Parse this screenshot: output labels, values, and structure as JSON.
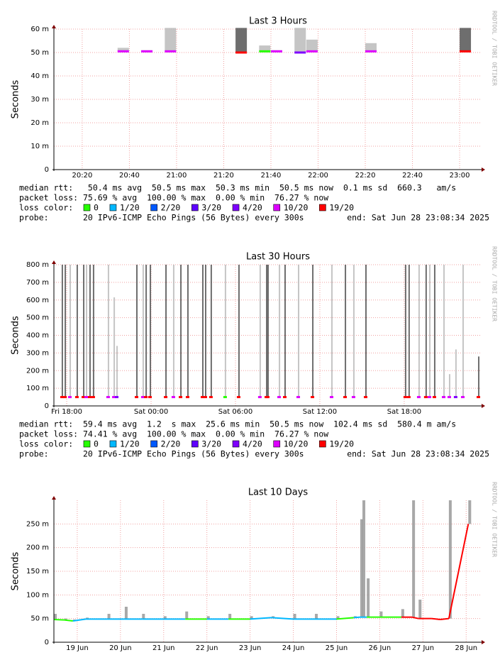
{
  "chart_data": [
    {
      "type": "smokeping",
      "title": "Last 3 Hours",
      "ylabel": "Seconds",
      "side_text": "RRDTOOL / TOBI OETIKER",
      "xlim": [
        1208,
        1389
      ],
      "xticks": [
        {
          "value": 1220,
          "label": "20:20"
        },
        {
          "value": 1240,
          "label": "20:40"
        },
        {
          "value": 1260,
          "label": "21:00"
        },
        {
          "value": 1280,
          "label": "21:20"
        },
        {
          "value": 1300,
          "label": "21:40"
        },
        {
          "value": 1320,
          "label": "22:00"
        },
        {
          "value": 1340,
          "label": "22:20"
        },
        {
          "value": 1360,
          "label": "22:40"
        },
        {
          "value": 1380,
          "label": "23:00"
        }
      ],
      "ylim": [
        0,
        0.06
      ],
      "yticks": [
        0,
        {
          "value": 0.01,
          "label": "10 m"
        },
        {
          "value": 0.02,
          "label": "20 m"
        },
        {
          "value": 0.03,
          "label": "30 m"
        },
        {
          "value": 0.04,
          "label": "40 m"
        },
        {
          "value": 0.05,
          "label": "50 m"
        },
        {
          "value": 0.06,
          "label": "60 m"
        }
      ],
      "grid": true,
      "points": [
        {
          "x": 1235,
          "median": 0.0505,
          "max": 0.052,
          "color": "#dd00ff"
        },
        {
          "x": 1245,
          "median": 0.0505,
          "max": 0.051,
          "color": "#dd00ff"
        },
        {
          "x": 1255,
          "median": 0.0505,
          "max": 0.0605,
          "color": "#dd00ff"
        },
        {
          "x": 1285,
          "median": 0.05,
          "max": 0.0605,
          "color": "#ff0000"
        },
        {
          "x": 1295,
          "median": 0.0505,
          "max": 0.053,
          "color": "#26ff00"
        },
        {
          "x": 1300,
          "median": 0.0505,
          "max": 0.051,
          "color": "#dd00ff"
        },
        {
          "x": 1310,
          "median": 0.05,
          "max": 0.0605,
          "color": "#7e00ff"
        },
        {
          "x": 1315,
          "median": 0.0505,
          "max": 0.0555,
          "color": "#dd00ff"
        },
        {
          "x": 1340,
          "median": 0.0505,
          "max": 0.054,
          "color": "#dd00ff"
        },
        {
          "x": 1380,
          "median": 0.0505,
          "max": 0.0605,
          "color": "#ff0000"
        }
      ],
      "stats": [
        "median rtt:   50.4 ms avg  50.5 ms max  50.3 ms min  50.5 ms now  0.1 ms sd  660.3   am/s",
        "packet loss: 75.69 % avg  100.00 % max  0.00 % min  76.27 % now"
      ],
      "loss_legend_title": "loss color:",
      "loss_legend": [
        {
          "label": "0",
          "color": "#26ff00"
        },
        {
          "label": "1/20",
          "color": "#00b8ff"
        },
        {
          "label": "2/20",
          "color": "#0059ff"
        },
        {
          "label": "3/20",
          "color": "#5e00ff"
        },
        {
          "label": "4/20",
          "color": "#7e00ff"
        },
        {
          "label": "10/20",
          "color": "#dd00ff"
        },
        {
          "label": "19/20",
          "color": "#ff0000"
        }
      ],
      "probe": "probe:       20 IPv6-ICMP Echo Pings (56 Bytes) every 300s",
      "end": "end: Sat Jun 28 23:08:34 2025"
    },
    {
      "type": "smokeping",
      "title": "Last 30 Hours",
      "ylabel": "Seconds",
      "side_text": "RRDTOOL / TOBI OETIKER",
      "xlim": [
        17.09,
        47.45
      ],
      "xticks": [
        {
          "value": 18,
          "label": "Fri 18:00"
        },
        {
          "value": 24,
          "label": "Sat 00:00"
        },
        {
          "value": 30,
          "label": "Sat 06:00"
        },
        {
          "value": 36,
          "label": "Sat 12:00"
        },
        {
          "value": 42,
          "label": "Sat 18:00"
        }
      ],
      "ylim": [
        0,
        0.8
      ],
      "yticks": [
        0,
        {
          "value": 0.1,
          "label": "100 m"
        },
        {
          "value": 0.2,
          "label": "200 m"
        },
        {
          "value": 0.3,
          "label": "300 m"
        },
        {
          "value": 0.4,
          "label": "400 m"
        },
        {
          "value": 0.5,
          "label": "500 m"
        },
        {
          "value": 0.6,
          "label": "600 m"
        },
        {
          "value": 0.7,
          "label": "700 m"
        },
        {
          "value": 0.8,
          "label": "800 m"
        }
      ],
      "grid": true,
      "points": [
        {
          "x": 17.64,
          "median": 0.05,
          "max": 0.8,
          "color": "#ff0000"
        },
        {
          "x": 17.85,
          "median": 0.05,
          "max": 0.8,
          "color": "#ff0000"
        },
        {
          "x": 18.2,
          "median": 0.05,
          "max": 0.8,
          "color": "#dd00ff"
        },
        {
          "x": 18.7,
          "median": 0.05,
          "max": 0.8,
          "color": "#ff0000"
        },
        {
          "x": 19.16,
          "median": 0.05,
          "max": 0.8,
          "color": "#ff0000"
        },
        {
          "x": 19.36,
          "median": 0.05,
          "max": 0.8,
          "color": "#dd00ff"
        },
        {
          "x": 19.61,
          "median": 0.05,
          "max": 0.8,
          "color": "#ff0000"
        },
        {
          "x": 19.86,
          "median": 0.05,
          "max": 0.8,
          "color": "#ff0000"
        },
        {
          "x": 20.92,
          "median": 0.05,
          "max": 0.8,
          "color": "#dd00ff"
        },
        {
          "x": 21.33,
          "median": 0.05,
          "max": 0.615,
          "color": "#dd00ff"
        },
        {
          "x": 21.53,
          "median": 0.05,
          "max": 0.34,
          "color": "#7e00ff"
        },
        {
          "x": 22.94,
          "median": 0.05,
          "max": 0.8,
          "color": "#ff0000"
        },
        {
          "x": 23.39,
          "median": 0.05,
          "max": 0.8,
          "color": "#dd00ff"
        },
        {
          "x": 23.6,
          "median": 0.05,
          "max": 0.8,
          "color": "#ff0000"
        },
        {
          "x": 23.9,
          "median": 0.05,
          "max": 0.8,
          "color": "#ff0000"
        },
        {
          "x": 25.01,
          "median": 0.05,
          "max": 0.8,
          "color": "#ff0000"
        },
        {
          "x": 25.56,
          "median": 0.05,
          "max": 0.8,
          "color": "#dd00ff"
        },
        {
          "x": 26.07,
          "median": 0.05,
          "max": 0.8,
          "color": "#ff0000"
        },
        {
          "x": 26.57,
          "median": 0.05,
          "max": 0.8,
          "color": "#ff0000"
        },
        {
          "x": 27.63,
          "median": 0.05,
          "max": 0.8,
          "color": "#ff0000"
        },
        {
          "x": 27.83,
          "median": 0.05,
          "max": 0.8,
          "color": "#ff0000"
        },
        {
          "x": 28.23,
          "median": 0.05,
          "max": 0.8,
          "color": "#ff0000"
        },
        {
          "x": 29.24,
          "median": 0.05,
          "max": 0.8,
          "color": "#26ff00"
        },
        {
          "x": 30.2,
          "median": 0.05,
          "max": 0.8,
          "color": "#ff0000"
        },
        {
          "x": 31.71,
          "median": 0.05,
          "max": 0.8,
          "color": "#dd00ff"
        },
        {
          "x": 32.17,
          "median": 0.05,
          "max": 0.8,
          "color": "#ff0000"
        },
        {
          "x": 32.27,
          "median": 0.05,
          "max": 0.8,
          "color": "#ff0000"
        },
        {
          "x": 33.08,
          "median": 0.05,
          "max": 0.8,
          "color": "#dd00ff"
        },
        {
          "x": 33.48,
          "median": 0.05,
          "max": 0.8,
          "color": "#ff0000"
        },
        {
          "x": 34.44,
          "median": 0.05,
          "max": 0.8,
          "color": "#dd00ff"
        },
        {
          "x": 35.45,
          "median": 0.05,
          "max": 0.8,
          "color": "#ff0000"
        },
        {
          "x": 36.81,
          "median": 0.05,
          "max": 0.8,
          "color": "#dd00ff"
        },
        {
          "x": 37.77,
          "median": 0.05,
          "max": 0.8,
          "color": "#ff0000"
        },
        {
          "x": 38.37,
          "median": 0.05,
          "max": 0.8,
          "color": "#dd00ff"
        },
        {
          "x": 39.23,
          "median": 0.05,
          "max": 0.8,
          "color": "#ff0000"
        },
        {
          "x": 42.05,
          "median": 0.05,
          "max": 0.8,
          "color": "#ff0000"
        },
        {
          "x": 42.3,
          "median": 0.05,
          "max": 0.8,
          "color": "#ff0000"
        },
        {
          "x": 43.01,
          "median": 0.05,
          "max": 0.8,
          "color": "#dd00ff"
        },
        {
          "x": 43.51,
          "median": 0.05,
          "max": 0.8,
          "color": "#ff0000"
        },
        {
          "x": 43.77,
          "median": 0.05,
          "max": 0.8,
          "color": "#dd00ff"
        },
        {
          "x": 44.12,
          "median": 0.05,
          "max": 0.8,
          "color": "#ff0000"
        },
        {
          "x": 44.78,
          "median": 0.05,
          "max": 0.8,
          "color": "#dd00ff"
        },
        {
          "x": 45.18,
          "median": 0.05,
          "max": 0.18,
          "color": "#dd00ff"
        },
        {
          "x": 45.63,
          "median": 0.05,
          "max": 0.32,
          "color": "#7e00ff"
        },
        {
          "x": 46.14,
          "median": 0.05,
          "max": 0.8,
          "color": "#dd00ff"
        },
        {
          "x": 47.25,
          "median": 0.05,
          "max": 0.28,
          "color": "#ff0000"
        }
      ],
      "stats": [
        "median rtt:  59.4 ms avg  1.2  s max  25.6 ms min  50.5 ms now  102.4 ms sd  580.4 m am/s",
        "packet loss: 74.41 % avg  100.00 % max  0.00 % min  76.27 % now"
      ],
      "loss_legend_title": "loss color:",
      "loss_legend": [
        {
          "label": "0",
          "color": "#26ff00"
        },
        {
          "label": "1/20",
          "color": "#00b8ff"
        },
        {
          "label": "2/20",
          "color": "#0059ff"
        },
        {
          "label": "3/20",
          "color": "#5e00ff"
        },
        {
          "label": "4/20",
          "color": "#7e00ff"
        },
        {
          "label": "10/20",
          "color": "#dd00ff"
        },
        {
          "label": "19/20",
          "color": "#ff0000"
        }
      ],
      "probe": "probe:       20 IPv6-ICMP Echo Pings (56 Bytes) every 300s",
      "end": "end: Sat Jun 28 23:08:34 2025"
    },
    {
      "type": "smokeping-line",
      "title": "Last 10 Days",
      "ylabel": "Seconds",
      "side_text": "RRDTOOL / TOBI OETIKER",
      "xlim": [
        18.96,
        28.84
      ],
      "xticks": [
        {
          "value": 19.5,
          "label": "19 Jun"
        },
        {
          "value": 20.5,
          "label": "20 Jun"
        },
        {
          "value": 21.5,
          "label": "21 Jun"
        },
        {
          "value": 22.5,
          "label": "22 Jun"
        },
        {
          "value": 23.5,
          "label": "23 Jun"
        },
        {
          "value": 24.5,
          "label": "24 Jun"
        },
        {
          "value": 25.5,
          "label": "25 Jun"
        },
        {
          "value": 26.5,
          "label": "26 Jun"
        },
        {
          "value": 27.5,
          "label": "27 Jun"
        },
        {
          "value": 28.5,
          "label": "28 Jun"
        }
      ],
      "ylim": [
        0,
        0.3
      ],
      "yticks": [
        0,
        {
          "value": 0.05,
          "label": "50 m"
        },
        {
          "value": 0.1,
          "label": "100 m"
        },
        {
          "value": 0.15,
          "label": "150 m"
        },
        {
          "value": 0.2,
          "label": "200 m"
        },
        {
          "value": 0.25,
          "label": "250 m"
        }
      ],
      "grid": true,
      "points": [
        {
          "x": 18.96,
          "median": 0.048,
          "max": 0.06,
          "color": "#26ff00"
        },
        {
          "x": 19.2,
          "median": 0.047,
          "max": 0.05,
          "color": "#26ff00"
        },
        {
          "x": 19.4,
          "median": 0.045,
          "max": 0.048,
          "color": "#26ff00"
        },
        {
          "x": 19.7,
          "median": 0.049,
          "max": 0.052,
          "color": "#00b8ff"
        },
        {
          "x": 20.2,
          "median": 0.049,
          "max": 0.06,
          "color": "#00b8ff"
        },
        {
          "x": 20.6,
          "median": 0.049,
          "max": 0.075,
          "color": "#00b8ff"
        },
        {
          "x": 21.0,
          "median": 0.049,
          "max": 0.06,
          "color": "#00b8ff"
        },
        {
          "x": 21.5,
          "median": 0.049,
          "max": 0.055,
          "color": "#00b8ff"
        },
        {
          "x": 22.0,
          "median": 0.049,
          "max": 0.065,
          "color": "#00b8ff"
        },
        {
          "x": 22.5,
          "median": 0.049,
          "max": 0.055,
          "color": "#26ff00"
        },
        {
          "x": 23.0,
          "median": 0.049,
          "max": 0.06,
          "color": "#00b8ff"
        },
        {
          "x": 23.5,
          "median": 0.049,
          "max": 0.055,
          "color": "#26ff00"
        },
        {
          "x": 24.0,
          "median": 0.052,
          "max": 0.055,
          "color": "#00b8ff"
        },
        {
          "x": 24.5,
          "median": 0.049,
          "max": 0.06,
          "color": "#00b8ff"
        },
        {
          "x": 25.0,
          "median": 0.049,
          "max": 0.06,
          "color": "#00b8ff"
        },
        {
          "x": 25.5,
          "median": 0.049,
          "max": 0.055,
          "color": "#00b8ff"
        },
        {
          "x": 25.9,
          "median": 0.052,
          "max": 0.055,
          "color": "#26ff00"
        },
        {
          "x": 26.05,
          "median": 0.053,
          "max": 0.26,
          "color": "#00b8ff"
        },
        {
          "x": 26.1,
          "median": 0.053,
          "max": 0.3,
          "color": "#00b8ff"
        },
        {
          "x": 26.2,
          "median": 0.053,
          "max": 0.135,
          "color": "#00b8ff"
        },
        {
          "x": 26.5,
          "median": 0.053,
          "max": 0.065,
          "color": "#26ff00"
        },
        {
          "x": 27.0,
          "median": 0.053,
          "max": 0.07,
          "color": "#26ff00"
        },
        {
          "x": 27.25,
          "median": 0.053,
          "max": 0.3,
          "color": "#ff0000"
        },
        {
          "x": 27.4,
          "median": 0.05,
          "max": 0.09,
          "color": "#ff0000"
        },
        {
          "x": 27.7,
          "median": 0.05,
          "max": 0.05,
          "color": "#ff0000"
        },
        {
          "x": 27.9,
          "median": 0.048,
          "max": 0.05,
          "color": "#ff0000"
        },
        {
          "x": 28.1,
          "median": 0.05,
          "max": 0.3,
          "color": "#ff0000"
        },
        {
          "x": 28.55,
          "median": 0.25,
          "max": 0.3,
          "color": "#ff0000"
        }
      ]
    }
  ]
}
